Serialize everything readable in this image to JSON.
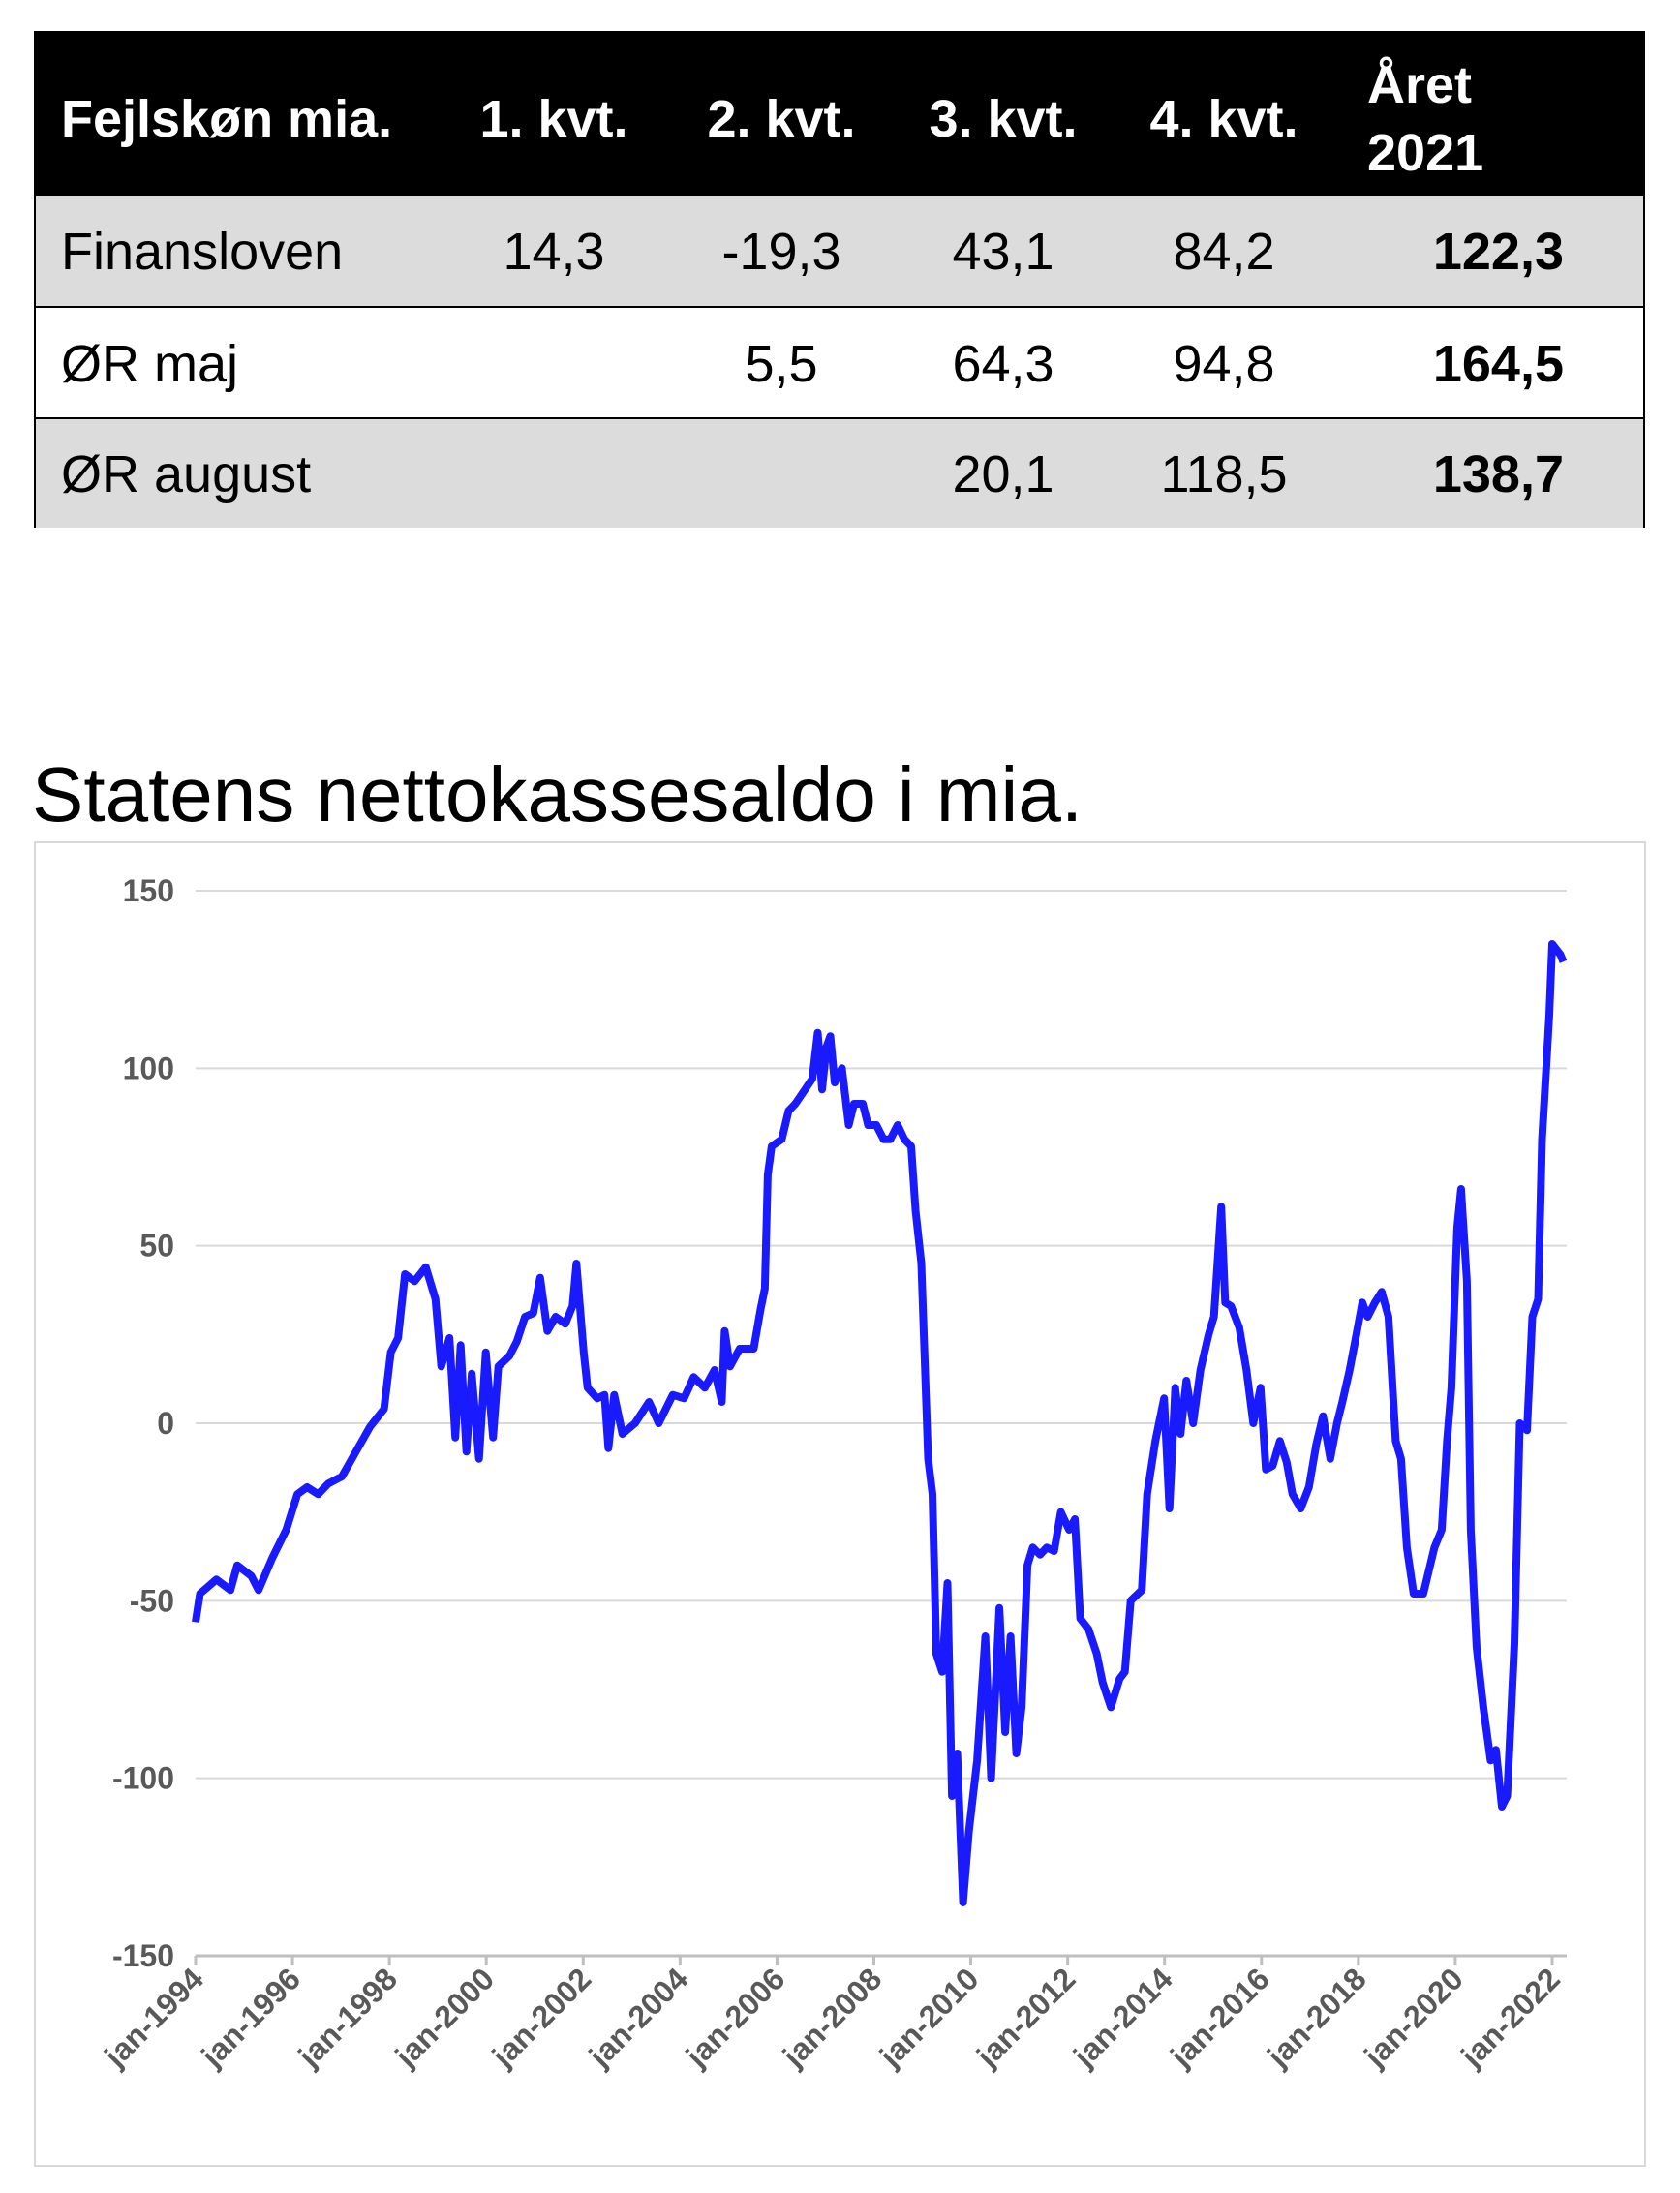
{
  "table": {
    "header": [
      "Fejlskøn mia.",
      "1. kvt.",
      "2. kvt.",
      "3. kvt.",
      "4. kvt.",
      "Året 2021"
    ],
    "rows": [
      [
        "Finansloven",
        "14,3",
        "-19,3",
        "43,1",
        "84,2",
        "122,3"
      ],
      [
        "ØR maj",
        null,
        "5,5",
        "64,3",
        "94,8",
        "164,5"
      ],
      [
        "ØR august",
        null,
        null,
        "20,1",
        "118,5",
        "138,7"
      ]
    ]
  },
  "chart_data": {
    "type": "line",
    "title": "Statens nettokassesaldo i mia.",
    "color": "#1a1aff",
    "grid": true,
    "xlim": [
      1994,
      2022.3
    ],
    "ylim": [
      -150,
      150
    ],
    "yticks": [
      -150,
      -100,
      -50,
      0,
      50,
      100,
      150
    ],
    "xticks": [
      {
        "value": 1994,
        "label": "jan-1994"
      },
      {
        "value": 1996,
        "label": "jan-1996"
      },
      {
        "value": 1998,
        "label": "jan-1998"
      },
      {
        "value": 2000,
        "label": "jan-2000"
      },
      {
        "value": 2002,
        "label": "jan-2002"
      },
      {
        "value": 2004,
        "label": "jan-2004"
      },
      {
        "value": 2006,
        "label": "jan-2006"
      },
      {
        "value": 2008,
        "label": "jan-2008"
      },
      {
        "value": 2010,
        "label": "jan-2010"
      },
      {
        "value": 2012,
        "label": "jan-2012"
      },
      {
        "value": 2014,
        "label": "jan-2014"
      },
      {
        "value": 2016,
        "label": "jan-2016"
      },
      {
        "value": 2018,
        "label": "jan-2018"
      },
      {
        "value": 2020,
        "label": "jan-2020"
      },
      {
        "value": 2022,
        "label": "jan-2022"
      }
    ],
    "x": [
      1994.0,
      1994.09,
      1994.43,
      1994.72,
      1994.86,
      1995.15,
      1995.3,
      1995.58,
      1995.87,
      1996.1,
      1996.3,
      1996.53,
      1996.74,
      1997.02,
      1997.31,
      1997.6,
      1997.89,
      1998.03,
      1998.18,
      1998.32,
      1998.52,
      1998.75,
      1998.95,
      1999.07,
      1999.24,
      1999.36,
      1999.47,
      1999.59,
      1999.7,
      1999.85,
      1999.99,
      2000.14,
      2000.25,
      2000.48,
      2000.63,
      2000.8,
      2000.97,
      2001.11,
      2001.26,
      2001.43,
      2001.63,
      2001.78,
      2001.86,
      2002.01,
      2002.09,
      2002.29,
      2002.44,
      2002.52,
      2002.64,
      2002.81,
      2003.07,
      2003.36,
      2003.56,
      2003.85,
      2004.08,
      2004.28,
      2004.51,
      2004.71,
      2004.86,
      2004.92,
      2005.03,
      2005.23,
      2005.52,
      2005.66,
      2005.75,
      2005.81,
      2005.89,
      2006.1,
      2006.24,
      2006.38,
      2006.53,
      2006.73,
      2006.84,
      2006.93,
      2007.02,
      2007.1,
      2007.19,
      2007.34,
      2007.48,
      2007.59,
      2007.77,
      2007.88,
      2008.05,
      2008.2,
      2008.34,
      2008.49,
      2008.63,
      2008.77,
      2008.86,
      2008.98,
      2009.12,
      2009.21,
      2009.29,
      2009.41,
      2009.52,
      2009.61,
      2009.72,
      2009.84,
      2009.96,
      2010.13,
      2010.3,
      2010.42,
      2010.59,
      2010.71,
      2010.82,
      2010.94,
      2011.05,
      2011.17,
      2011.28,
      2011.43,
      2011.57,
      2011.72,
      2011.86,
      2012.03,
      2012.15,
      2012.26,
      2012.43,
      2012.6,
      2012.72,
      2012.89,
      2013.07,
      2013.18,
      2013.3,
      2013.53,
      2013.64,
      2013.81,
      2013.99,
      2014.1,
      2014.22,
      2014.33,
      2014.45,
      2014.59,
      2014.74,
      2014.91,
      2015.02,
      2015.17,
      2015.25,
      2015.37,
      2015.54,
      2015.69,
      2015.83,
      2015.98,
      2016.09,
      2016.23,
      2016.38,
      2016.52,
      2016.64,
      2016.81,
      2016.98,
      2017.13,
      2017.27,
      2017.42,
      2017.56,
      2017.67,
      2017.82,
      2017.96,
      2018.08,
      2018.19,
      2018.34,
      2018.48,
      2018.62,
      2018.77,
      2018.88,
      2019.0,
      2019.14,
      2019.34,
      2019.57,
      2019.72,
      2019.83,
      2019.92,
      2020.04,
      2020.12,
      2020.24,
      2020.32,
      2020.44,
      2020.58,
      2020.73,
      2020.84,
      2020.96,
      2021.07,
      2021.22,
      2021.33,
      2021.48,
      2021.59,
      2021.71,
      2021.79,
      2021.94,
      2022.0,
      2022.17,
      2022.23
    ],
    "values": [
      -56,
      -48,
      -44,
      -47,
      -40,
      -43,
      -47,
      -38,
      -30,
      -20,
      -18,
      -20,
      -17,
      -15,
      -8,
      -1,
      4,
      20,
      24,
      42,
      40,
      44,
      35,
      16,
      24,
      -4,
      22,
      -8,
      14,
      -10,
      20,
      -4,
      16,
      19,
      23,
      30,
      31,
      41,
      26,
      30,
      28,
      33,
      45,
      20,
      10,
      7,
      8,
      -7,
      8,
      -3,
      0,
      6,
      0,
      8,
      7,
      13,
      10,
      15,
      6,
      26,
      16,
      21,
      21,
      32,
      38,
      70,
      78,
      80,
      88,
      90,
      93,
      97,
      110,
      94,
      106,
      109,
      96,
      100,
      84,
      90,
      90,
      84,
      84,
      80,
      80,
      84,
      80,
      78,
      60,
      45,
      -10,
      -20,
      -65,
      -70,
      -45,
      -105,
      -93,
      -135,
      -115,
      -95,
      -60,
      -100,
      -52,
      -87,
      -60,
      -93,
      -80,
      -40,
      -35,
      -37,
      -35,
      -36,
      -25,
      -30,
      -27,
      -55,
      -58,
      -65,
      -73,
      -80,
      -72,
      -70,
      -50,
      -47,
      -20,
      -5,
      7,
      -24,
      10,
      -3,
      12,
      0,
      15,
      25,
      30,
      61,
      34,
      33,
      27,
      15,
      0,
      10,
      -13,
      -12,
      -5,
      -11,
      -20,
      -24,
      -18,
      -6,
      2,
      -10,
      0,
      6,
      15,
      25,
      34,
      30,
      34,
      37,
      30,
      -5,
      -10,
      -35,
      -48,
      -48,
      -35,
      -30,
      -5,
      10,
      55,
      66,
      40,
      -30,
      -63,
      -80,
      -95,
      -92,
      -108,
      -105,
      -62,
      0,
      -2,
      30,
      35,
      80,
      115,
      135,
      132,
      130
    ]
  }
}
